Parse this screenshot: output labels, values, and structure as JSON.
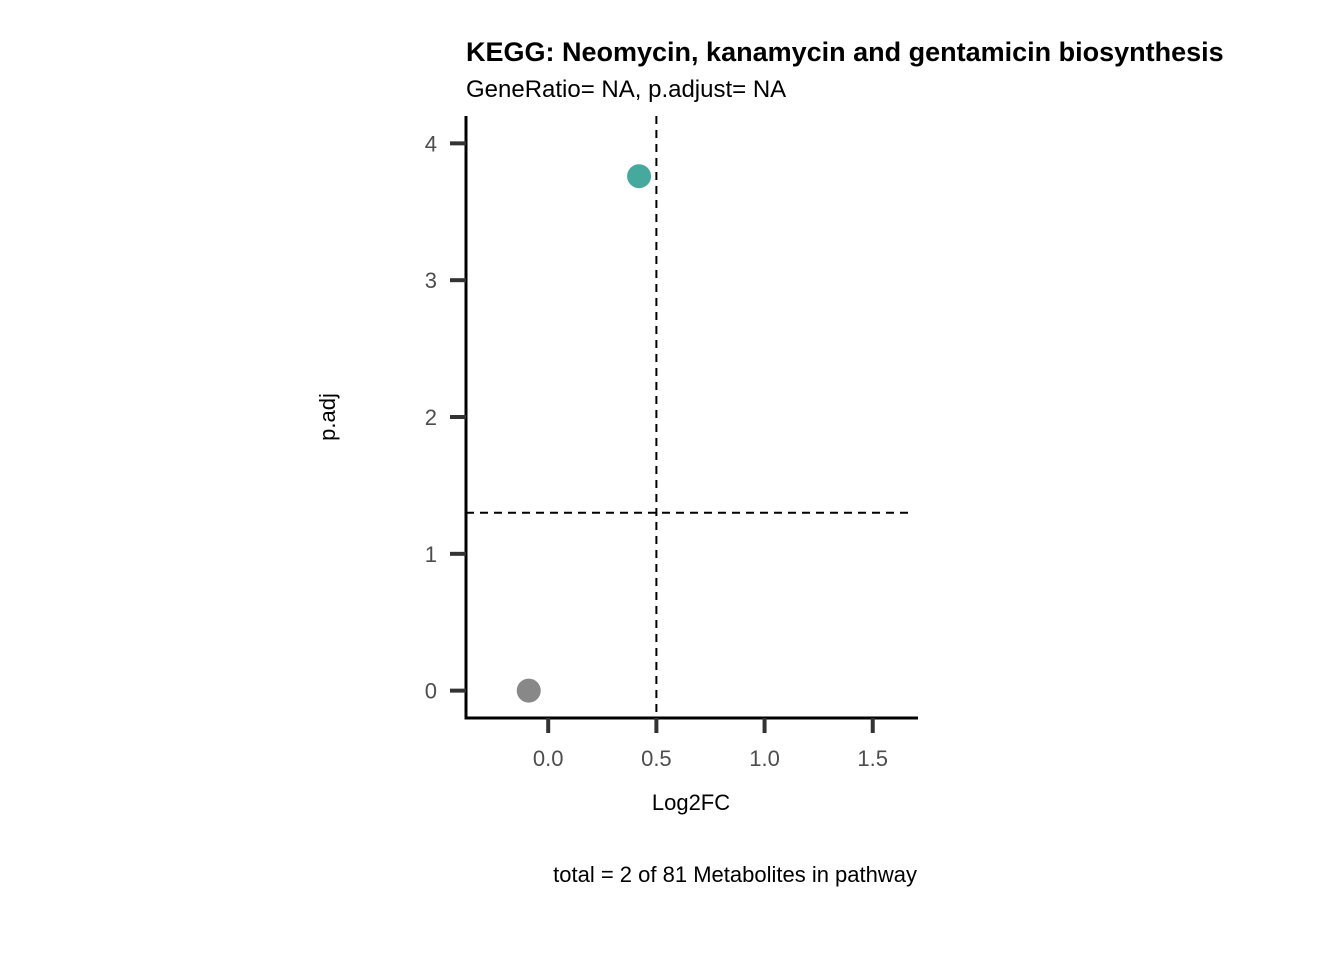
{
  "chart_data": {
    "type": "scatter",
    "title": "KEGG: Neomycin, kanamycin and gentamicin biosynthesis",
    "subtitle": "GeneRatio= NA, p.adjust= NA",
    "xlabel": "Log2FC",
    "ylabel": "p.adj",
    "caption": "total = 2 of 81 Metabolites in pathway",
    "xlim": [
      -0.38,
      1.7
    ],
    "ylim": [
      -0.2,
      4.2
    ],
    "x_ticks": [
      0.0,
      0.5,
      1.0,
      1.5
    ],
    "x_tick_labels": [
      "0.0",
      "0.5",
      "1.0",
      "1.5"
    ],
    "y_ticks": [
      0,
      1,
      2,
      3,
      4
    ],
    "y_tick_labels": [
      "0",
      "1",
      "2",
      "3",
      "4"
    ],
    "points": [
      {
        "x": -0.09,
        "y": 0.0,
        "color": "#888888"
      },
      {
        "x": 0.42,
        "y": 3.76,
        "color": "#45a99d"
      }
    ],
    "reference_lines": {
      "vertical_x": 0.5,
      "horizontal_y": 1.3
    },
    "grid": false,
    "legend": "none",
    "colors": {
      "significant": "#45a99d",
      "not_significant": "#888888",
      "axis": "#000000",
      "tick": "#333333"
    }
  }
}
